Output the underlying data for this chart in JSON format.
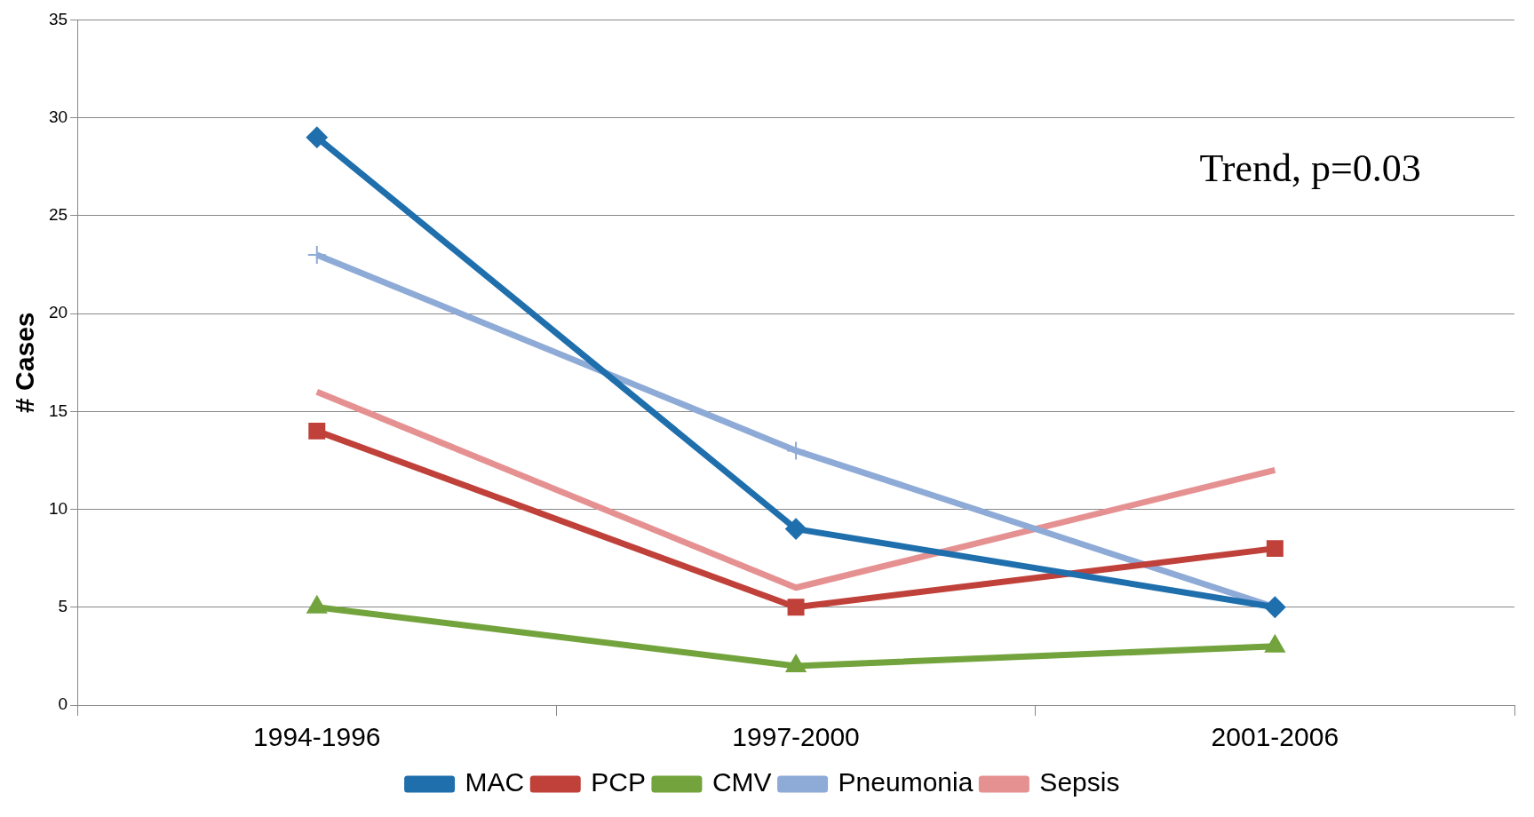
{
  "chart_data": {
    "type": "line",
    "ylabel": "# Cases",
    "categories": [
      "1994-1996",
      "1997-2000",
      "2001-2006"
    ],
    "series": [
      {
        "name": "MAC",
        "color": "#1f6fad",
        "marker": "diamond",
        "values": [
          29,
          9,
          5
        ]
      },
      {
        "name": "PCP",
        "color": "#c0403a",
        "marker": "square",
        "values": [
          14,
          5,
          8
        ]
      },
      {
        "name": "CMV",
        "color": "#72a33c",
        "marker": "triangle",
        "values": [
          5,
          2,
          3
        ]
      },
      {
        "name": "Pneumonia",
        "color": "#8eaad6",
        "marker": "cross",
        "values": [
          23,
          13,
          5
        ]
      },
      {
        "name": "Sepsis",
        "color": "#e69191",
        "marker": "none",
        "values": [
          16,
          6,
          12
        ]
      }
    ],
    "ylim": [
      0,
      35
    ],
    "yticks": [
      0,
      5,
      10,
      15,
      20,
      25,
      30,
      35
    ],
    "grid": "y",
    "legend": "bottom",
    "annotations": [
      "Trend, p=0.03"
    ]
  }
}
